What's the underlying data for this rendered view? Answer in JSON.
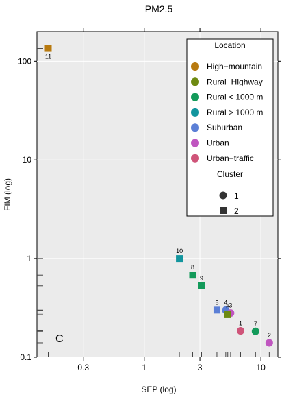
{
  "chart_data": {
    "type": "scatter",
    "title": "PM2.5",
    "xlabel": "SEP (log)",
    "ylabel": "FIM (log)",
    "xscale": "log",
    "yscale": "log",
    "xlim": [
      0.12,
      14
    ],
    "ylim": [
      0.1,
      200
    ],
    "x_ticks": [
      0.3,
      1,
      3,
      10
    ],
    "x_tick_labels": [
      "0.3",
      "1",
      "3",
      "10"
    ],
    "y_ticks": [
      0.1,
      1,
      10,
      100
    ],
    "y_tick_labels": [
      "0.1",
      "1",
      "10",
      "100"
    ],
    "grid": true,
    "panel_letter": "C",
    "legend": {
      "position": "top-right",
      "title": "Location",
      "locations": [
        {
          "name": "High−mountain",
          "color": "#b87a0f"
        },
        {
          "name": "Rural−Highway",
          "color": "#6e8a12"
        },
        {
          "name": "Rural < 1000 m",
          "color": "#139a5a"
        },
        {
          "name": "Rural > 1000 m",
          "color": "#12959e"
        },
        {
          "name": "Suburban",
          "color": "#5b7fd6"
        },
        {
          "name": "Urban",
          "color": "#c056c0"
        },
        {
          "name": "Urban−traffic",
          "color": "#cf5479"
        }
      ],
      "cluster_title": "Cluster",
      "clusters": [
        {
          "name": "1",
          "shape": "circle"
        },
        {
          "name": "2",
          "shape": "square"
        }
      ]
    },
    "points": [
      {
        "label": "11",
        "location": "High−mountain",
        "cluster": "2",
        "x": 0.15,
        "y": 135
      },
      {
        "label": "10",
        "location": "Rural > 1000 m",
        "cluster": "2",
        "x": 2.0,
        "y": 1.0
      },
      {
        "label": "8",
        "location": "Rural < 1000 m",
        "cluster": "2",
        "x": 2.6,
        "y": 0.68
      },
      {
        "label": "9",
        "location": "Rural < 1000 m",
        "cluster": "2",
        "x": 3.1,
        "y": 0.53
      },
      {
        "label": "5",
        "location": "Suburban",
        "cluster": "2",
        "x": 4.2,
        "y": 0.3
      },
      {
        "label": "4",
        "location": "Suburban",
        "cluster": "1",
        "x": 5.0,
        "y": 0.3
      },
      {
        "label": "3",
        "location": "Urban",
        "cluster": "1",
        "x": 5.5,
        "y": 0.28
      },
      {
        "label": "6",
        "location": "Rural−Highway",
        "cluster": "2",
        "x": 5.2,
        "y": 0.27
      },
      {
        "label": "1",
        "location": "Urban−traffic",
        "cluster": "1",
        "x": 6.7,
        "y": 0.185
      },
      {
        "label": "7",
        "location": "Rural < 1000 m",
        "cluster": "1",
        "x": 9.0,
        "y": 0.183
      },
      {
        "label": "2",
        "location": "Urban",
        "cluster": "1",
        "x": 11.8,
        "y": 0.14
      }
    ]
  }
}
